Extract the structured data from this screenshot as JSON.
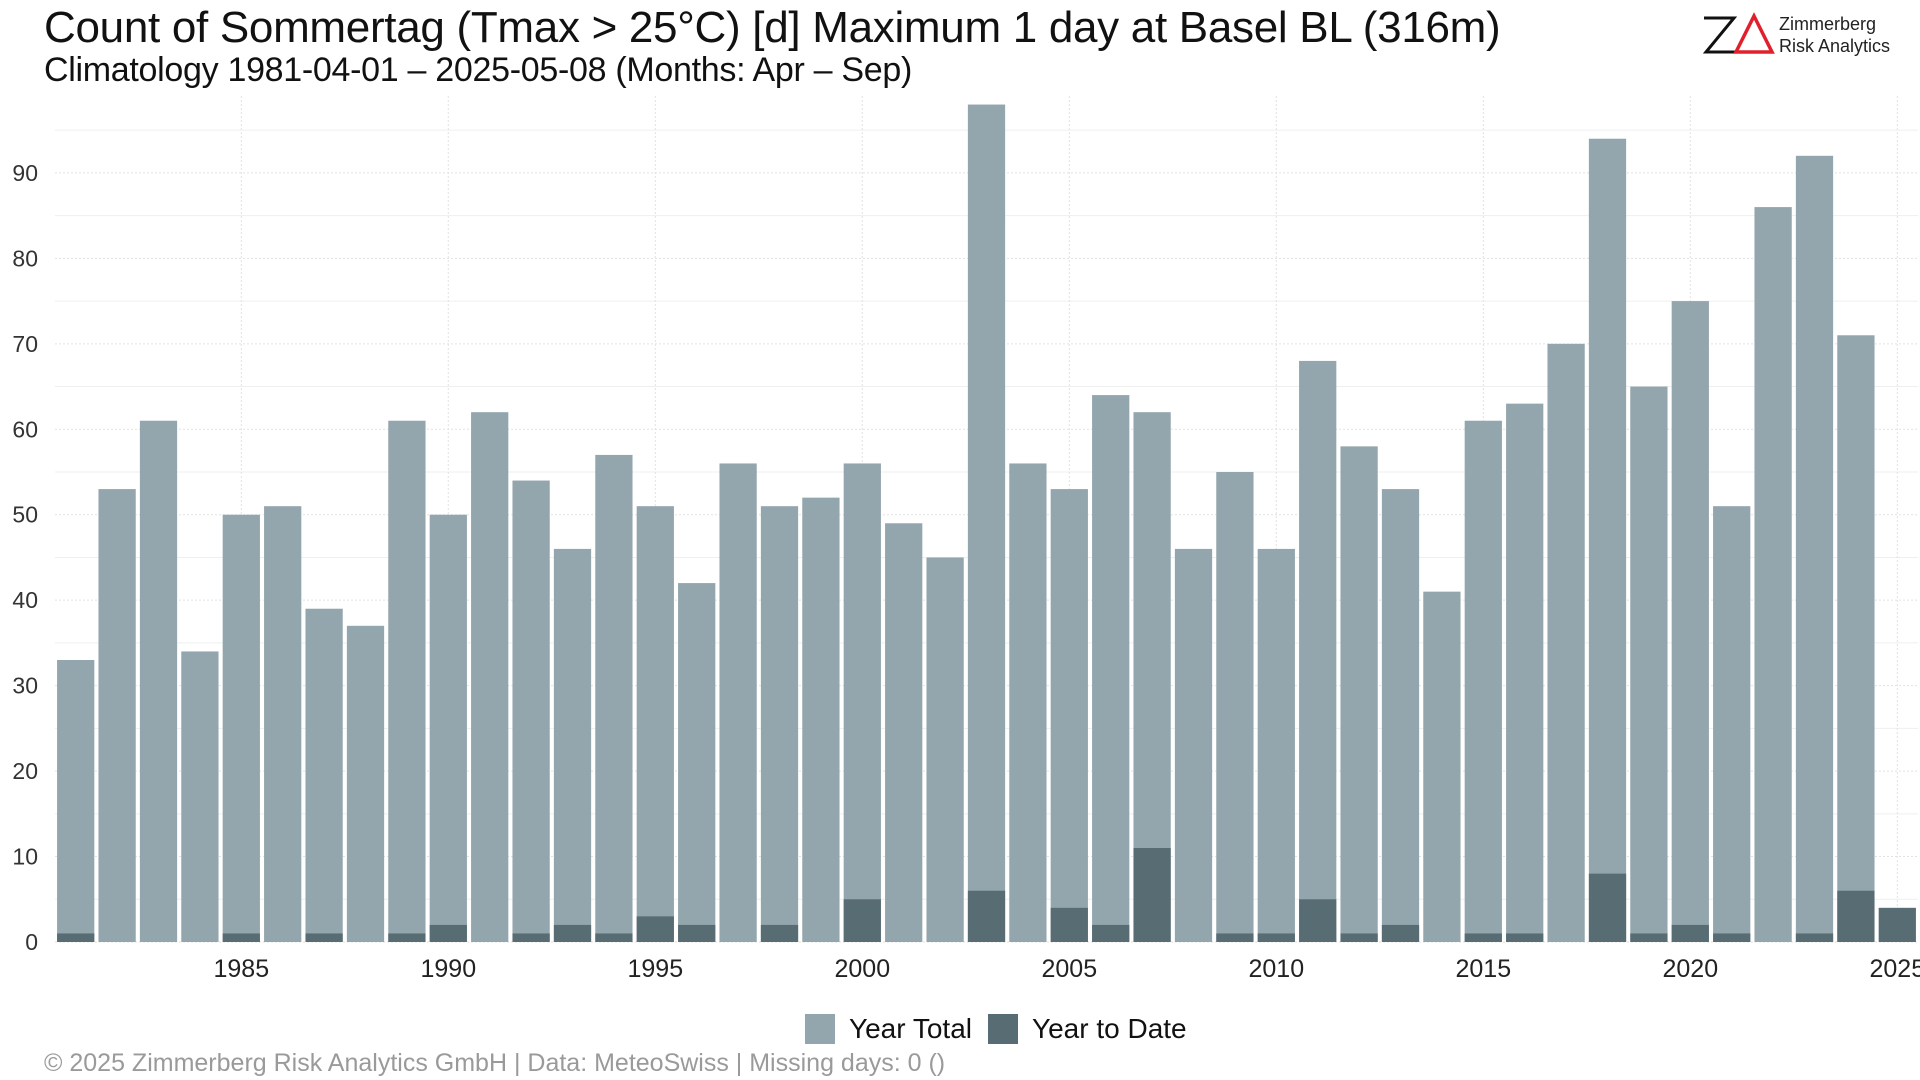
{
  "title": "Count of Sommertag (Tmax > 25°C) [d] Maximum 1 day at Basel  BL (316m)",
  "subtitle": "Climatology 1981-04-01 – 2025-05-08 (Months: Apr – Sep)",
  "logo": {
    "mark": "ZΔ",
    "line1": "Zimmerberg",
    "line2": "Risk Analytics",
    "colors": {
      "z": "#111111",
      "delta": "#e0202a"
    }
  },
  "footer": "©  2025 Zimmerberg Risk Analytics GmbH | Data: MeteoSwiss | Missing days: 0 ()",
  "chart_data": {
    "type": "bar",
    "x": [
      1981,
      1982,
      1983,
      1984,
      1985,
      1986,
      1987,
      1988,
      1989,
      1990,
      1991,
      1992,
      1993,
      1994,
      1995,
      1996,
      1997,
      1998,
      1999,
      2000,
      2001,
      2002,
      2003,
      2004,
      2005,
      2006,
      2007,
      2008,
      2009,
      2010,
      2011,
      2012,
      2013,
      2014,
      2015,
      2016,
      2017,
      2018,
      2019,
      2020,
      2021,
      2022,
      2023,
      2024,
      2025
    ],
    "series": [
      {
        "name": "Year Total",
        "color": "#93a6ad",
        "values": [
          33,
          53,
          61,
          34,
          50,
          51,
          39,
          37,
          61,
          50,
          62,
          54,
          46,
          57,
          51,
          42,
          56,
          51,
          52,
          56,
          49,
          45,
          98,
          56,
          53,
          64,
          62,
          46,
          55,
          46,
          68,
          58,
          53,
          41,
          61,
          63,
          70,
          94,
          65,
          75,
          51,
          86,
          92,
          71,
          null
        ]
      },
      {
        "name": "Year to Date",
        "color": "#586d73",
        "values": [
          1,
          0,
          0,
          0,
          1,
          0,
          1,
          0,
          1,
          2,
          0,
          1,
          2,
          1,
          3,
          2,
          0,
          2,
          0,
          5,
          0,
          0,
          6,
          0,
          4,
          2,
          11,
          0,
          1,
          1,
          5,
          1,
          2,
          0,
          1,
          1,
          0,
          8,
          1,
          2,
          1,
          0,
          1,
          6,
          4
        ]
      }
    ],
    "xticks": [
      1985,
      1990,
      1995,
      2000,
      2005,
      2010,
      2015,
      2020,
      2025
    ],
    "yticks": [
      0,
      10,
      20,
      30,
      40,
      50,
      60,
      70,
      80,
      90
    ],
    "xlim": [
      1980.5,
      2025.5
    ],
    "ylim": [
      0,
      99
    ],
    "grid": true,
    "legend": "bottom",
    "xlabel": "",
    "ylabel": ""
  }
}
